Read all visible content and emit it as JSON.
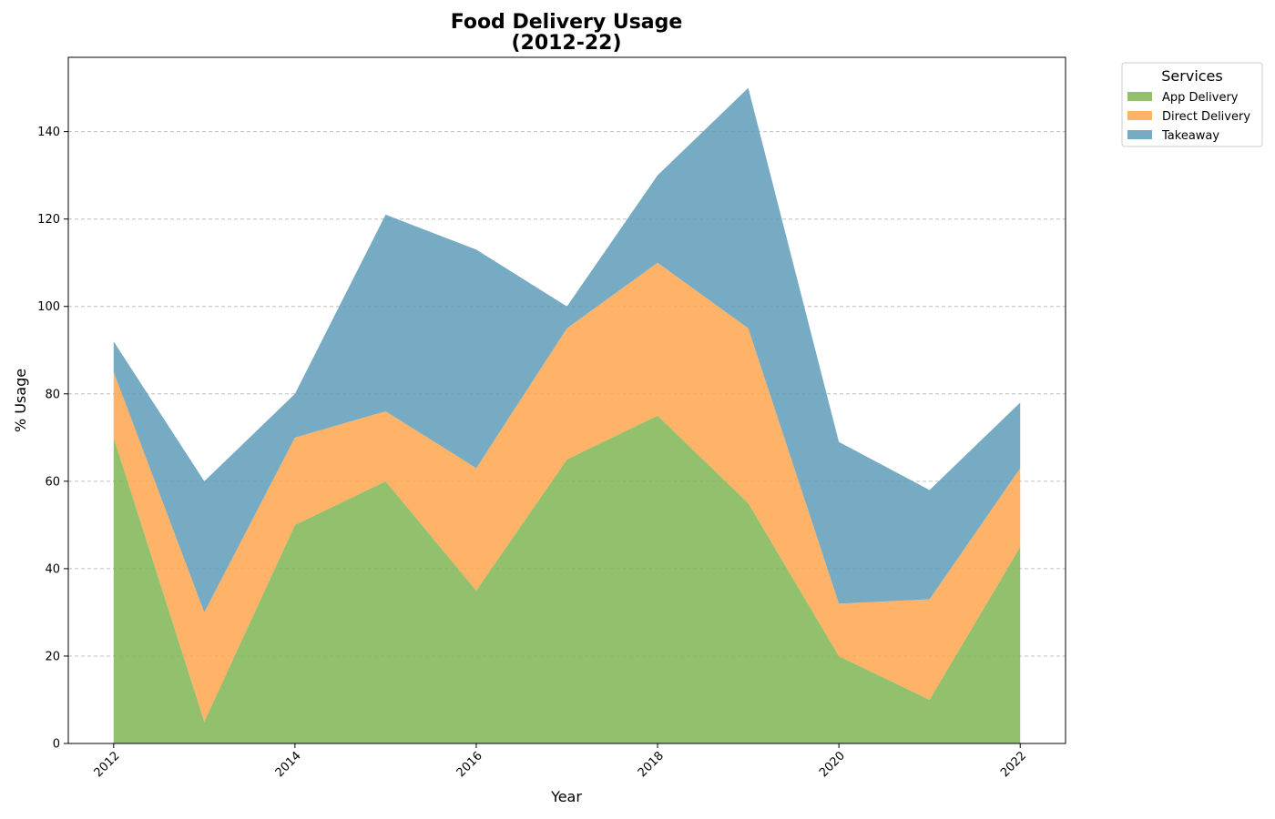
{
  "chart_data": {
    "type": "area",
    "stacked": true,
    "title_line1": "Food Delivery Usage",
    "title_line2": "(2012-22)",
    "xlabel": "Year",
    "ylabel": "% Usage",
    "x": [
      2012,
      2013,
      2014,
      2015,
      2016,
      2017,
      2018,
      2019,
      2020,
      2021,
      2022
    ],
    "xlim": [
      2011.5,
      2022.5
    ],
    "ylim": [
      0,
      157
    ],
    "xticks": [
      "2012",
      "2014",
      "2016",
      "2018",
      "2020",
      "2022"
    ],
    "yticks": [
      "0",
      "20",
      "40",
      "60",
      "80",
      "100",
      "120",
      "140"
    ],
    "grid": "horizontal dashed",
    "series": [
      {
        "name": "App Delivery",
        "color": "#7fb554",
        "values": [
          70,
          5,
          50,
          60,
          35,
          65,
          75,
          55,
          20,
          10,
          45
        ]
      },
      {
        "name": "Direct Delivery",
        "color": "#ffa64d",
        "values": [
          15,
          25,
          20,
          16,
          28,
          30,
          35,
          40,
          12,
          23,
          18
        ]
      },
      {
        "name": "Takeaway",
        "color": "#5f9cb8",
        "values": [
          7,
          30,
          10,
          45,
          50,
          5,
          20,
          55,
          37,
          25,
          15
        ]
      }
    ],
    "legend": {
      "title": "Services",
      "position": "outside-top-right"
    }
  }
}
